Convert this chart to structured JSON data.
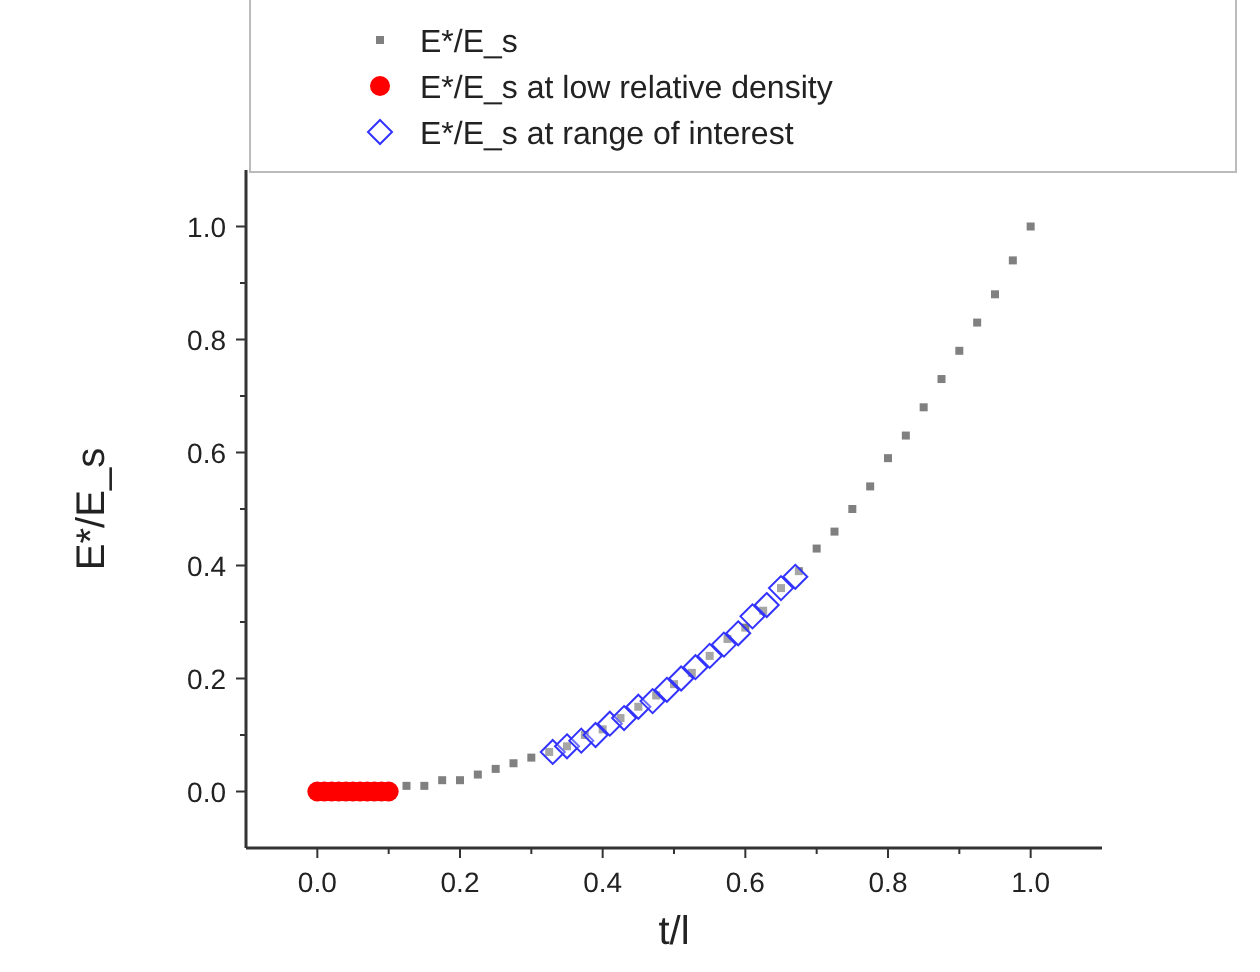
{
  "chart_data": {
    "type": "scatter",
    "xlabel": "t/l",
    "ylabel": "E*/E_s",
    "legend": "top",
    "xlim": [
      -0.1,
      1.1
    ],
    "ylim": [
      -0.1,
      1.1
    ],
    "xticks": [
      {
        "value": 0,
        "label": "0.0"
      },
      {
        "value": 0.1,
        "label": null
      },
      {
        "value": 0.2,
        "label": "0.2"
      },
      {
        "value": 0.3,
        "label": null
      },
      {
        "value": 0.4,
        "label": "0.4"
      },
      {
        "value": 0.5,
        "label": null
      },
      {
        "value": 0.6,
        "label": "0.6"
      },
      {
        "value": 0.7,
        "label": null
      },
      {
        "value": 0.8,
        "label": "0.8"
      },
      {
        "value": 0.9,
        "label": null
      },
      {
        "value": 1,
        "label": "1.0"
      }
    ],
    "yticks": [
      {
        "value": 0,
        "label": "0.0"
      },
      {
        "value": 0.1,
        "label": null
      },
      {
        "value": 0.2,
        "label": "0.2"
      },
      {
        "value": 0.3,
        "label": null
      },
      {
        "value": 0.4,
        "label": "0.4"
      },
      {
        "value": 0.5,
        "label": null
      },
      {
        "value": 0.6,
        "label": "0.6"
      },
      {
        "value": 0.7,
        "label": null
      },
      {
        "value": 0.8,
        "label": "0.8"
      },
      {
        "value": 0.9,
        "label": null
      },
      {
        "value": 1,
        "label": "1.0"
      }
    ],
    "series": [
      {
        "name": "E*/E_s",
        "marker": "square",
        "color": "#808080",
        "x": [
          0.125,
          0.15,
          0.175,
          0.2,
          0.225,
          0.25,
          0.275,
          0.3,
          0.325,
          0.35,
          0.375,
          0.4,
          0.425,
          0.45,
          0.475,
          0.5,
          0.525,
          0.55,
          0.575,
          0.6,
          0.625,
          0.65,
          0.675,
          0.7,
          0.725,
          0.75,
          0.775,
          0.8,
          0.825,
          0.85,
          0.875,
          0.9,
          0.925,
          0.95,
          0.975,
          1
        ],
        "values": [
          0.01,
          0.01,
          0.02,
          0.02,
          0.03,
          0.04,
          0.05,
          0.06,
          0.07,
          0.08,
          0.1,
          0.11,
          0.13,
          0.15,
          0.17,
          0.19,
          0.21,
          0.24,
          0.27,
          0.29,
          0.32,
          0.36,
          0.39,
          0.43,
          0.46,
          0.5,
          0.54,
          0.59,
          0.63,
          0.68,
          0.73,
          0.78,
          0.83,
          0.88,
          0.94,
          1
        ]
      },
      {
        "name": "E*/E_s at low relative density",
        "marker": "circle",
        "color": "#ff0000",
        "x": [
          0,
          0.01,
          0.02,
          0.03,
          0.04,
          0.05,
          0.06,
          0.07,
          0.08,
          0.09,
          0.1
        ],
        "values": [
          0,
          0,
          0,
          0,
          0,
          0,
          0,
          0,
          0,
          0,
          0
        ]
      },
      {
        "name": "E*/E_s at range of interest",
        "marker": "diamond",
        "color": "#3333ff",
        "x": [
          0.33,
          0.35,
          0.37,
          0.39,
          0.41,
          0.43,
          0.45,
          0.47,
          0.49,
          0.51,
          0.53,
          0.55,
          0.57,
          0.59,
          0.61,
          0.63,
          0.65,
          0.67
        ],
        "values": [
          0.07,
          0.08,
          0.09,
          0.1,
          0.12,
          0.13,
          0.15,
          0.16,
          0.18,
          0.2,
          0.22,
          0.24,
          0.26,
          0.28,
          0.31,
          0.33,
          0.36,
          0.38
        ]
      }
    ]
  }
}
